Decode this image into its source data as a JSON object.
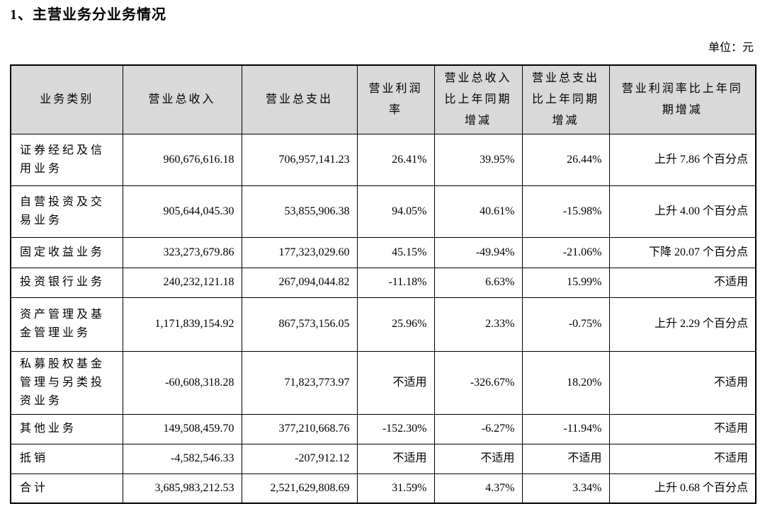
{
  "page": {
    "title": "1、主营业务分业务情况",
    "unit_label": "单位：元"
  },
  "colors": {
    "header_bg": "#d9d9d9",
    "border": "#000000",
    "text": "#000000",
    "page_bg": "#ffffff"
  },
  "table": {
    "columns": [
      "业务类别",
      "营业总收入",
      "营业总支出",
      "营业利润率",
      "营业总收入比上年同期增减",
      "营业总支出比上年同期增减",
      "营业利润率比上年同期增减"
    ],
    "rows": [
      [
        "证券经纪及信用业务",
        "960,676,616.18",
        "706,957,141.23",
        "26.41%",
        "39.95%",
        "26.44%",
        "上升 7.86 个百分点"
      ],
      [
        "自营投资及交易业务",
        "905,644,045.30",
        "53,855,906.38",
        "94.05%",
        "40.61%",
        "-15.98%",
        "上升 4.00 个百分点"
      ],
      [
        "固定收益业务",
        "323,273,679.86",
        "177,323,029.60",
        "45.15%",
        "-49.94%",
        "-21.06%",
        "下降 20.07 个百分点"
      ],
      [
        "投资银行业务",
        "240,232,121.18",
        "267,094,044.82",
        "-11.18%",
        "6.63%",
        "15.99%",
        "不适用"
      ],
      [
        "资产管理及基金管理业务",
        "1,171,839,154.92",
        "867,573,156.05",
        "25.96%",
        "2.33%",
        "-0.75%",
        "上升 2.29 个百分点"
      ],
      [
        "私募股权基金管理与另类投资业务",
        "-60,608,318.28",
        "71,823,773.97",
        "不适用",
        "-326.67%",
        "18.20%",
        "不适用"
      ],
      [
        "其他业务",
        "149,508,459.70",
        "377,210,668.76",
        "-152.30%",
        "-6.27%",
        "-11.94%",
        "不适用"
      ],
      [
        "抵销",
        "-4,582,546.33",
        "-207,912.12",
        "不适用",
        "不适用",
        "不适用",
        "不适用"
      ],
      [
        "合计",
        "3,685,983,212.53",
        "2,521,629,808.69",
        "31.59%",
        "4.37%",
        "3.34%",
        "上升 0.68 个百分点"
      ]
    ]
  }
}
